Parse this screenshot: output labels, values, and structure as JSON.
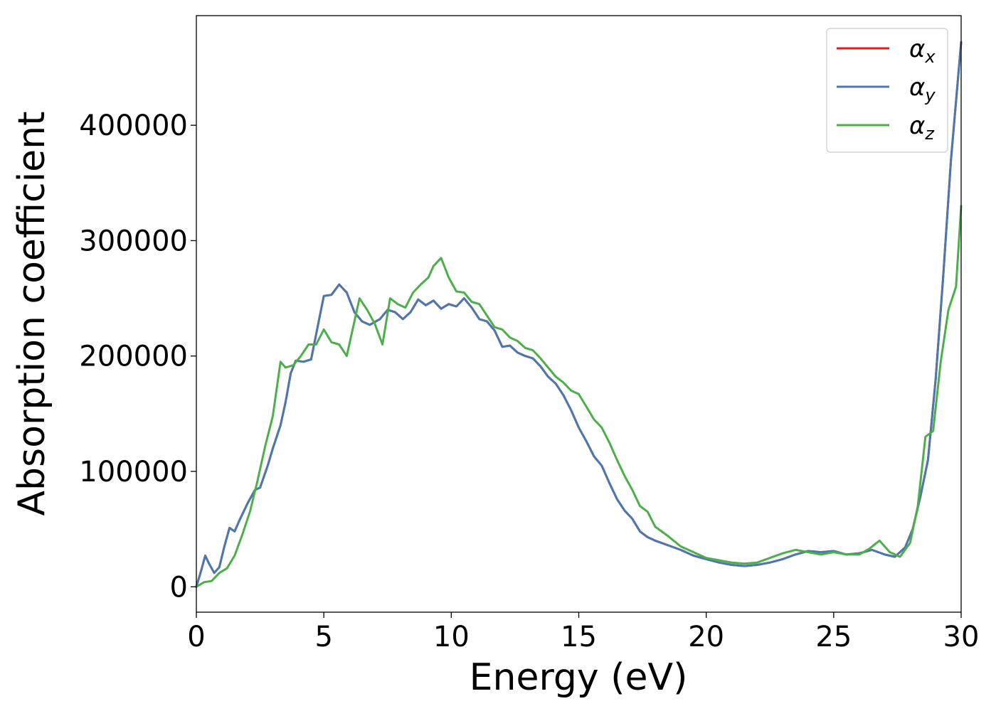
{
  "chart_data": {
    "type": "line",
    "title": "",
    "xlabel": "Energy (eV)",
    "ylabel": "Absorption coefficient",
    "xlim": [
      0,
      30
    ],
    "ylim": [
      -22000,
      495000
    ],
    "xticks": [
      0,
      5,
      10,
      15,
      20,
      25,
      30
    ],
    "xtick_labels": [
      "0",
      "5",
      "10",
      "15",
      "20",
      "25",
      "30"
    ],
    "yticks": [
      0,
      100000,
      200000,
      300000,
      400000
    ],
    "ytick_labels": [
      "0",
      "100000",
      "200000",
      "300000",
      "400000"
    ],
    "grid": false,
    "legend_position": "top-right",
    "series": [
      {
        "name": "α_x",
        "legend_symbol": "α",
        "legend_subscript": "x",
        "color": "#e41a1c",
        "x": [
          0,
          0.2,
          0.35,
          0.5,
          0.7,
          0.9,
          1.1,
          1.3,
          1.5,
          1.7,
          2.0,
          2.3,
          2.5,
          2.8,
          3.0,
          3.3,
          3.5,
          3.7,
          3.9,
          4.2,
          4.5,
          4.8,
          5.0,
          5.3,
          5.6,
          5.9,
          6.2,
          6.5,
          6.8,
          7.2,
          7.5,
          7.8,
          8.1,
          8.4,
          8.7,
          9.0,
          9.3,
          9.6,
          9.9,
          10.2,
          10.5,
          10.8,
          11.1,
          11.4,
          11.7,
          12.0,
          12.3,
          12.6,
          12.9,
          13.2,
          13.5,
          13.8,
          14.1,
          14.4,
          14.7,
          15.0,
          15.3,
          15.6,
          15.9,
          16.2,
          16.5,
          16.8,
          17.1,
          17.4,
          17.7,
          18.0,
          18.5,
          19.0,
          19.5,
          20.0,
          20.5,
          21.0,
          21.5,
          22.0,
          22.5,
          23.0,
          23.5,
          24.0,
          24.5,
          25.0,
          25.5,
          26.0,
          26.5,
          27.0,
          27.4,
          27.8,
          28.1,
          28.4,
          28.7,
          29.0,
          29.3,
          29.6,
          30.0
        ],
        "y": [
          0,
          15000,
          27000,
          20000,
          12000,
          17000,
          35000,
          51000,
          48000,
          58000,
          72000,
          84000,
          86000,
          105000,
          120000,
          140000,
          160000,
          185000,
          196000,
          195000,
          197000,
          230000,
          252000,
          253000,
          262000,
          255000,
          238000,
          230000,
          227000,
          232000,
          240000,
          238000,
          232000,
          238000,
          249000,
          244000,
          248000,
          241000,
          245000,
          243000,
          250000,
          242000,
          232000,
          230000,
          222000,
          208000,
          209000,
          203000,
          200000,
          198000,
          191000,
          182000,
          176000,
          166000,
          153000,
          138000,
          126000,
          113000,
          105000,
          90000,
          76000,
          66000,
          59000,
          48000,
          43000,
          40000,
          36000,
          32000,
          27000,
          24000,
          21000,
          19000,
          18000,
          19000,
          21000,
          24000,
          28000,
          31000,
          30000,
          31000,
          28000,
          29000,
          32000,
          28000,
          26000,
          34000,
          50000,
          78000,
          110000,
          180000,
          270000,
          370000,
          472000
        ]
      },
      {
        "name": "α_y",
        "legend_symbol": "α",
        "legend_subscript": "y",
        "color": "#4a79b0",
        "x": [
          0,
          0.2,
          0.35,
          0.5,
          0.7,
          0.9,
          1.1,
          1.3,
          1.5,
          1.7,
          2.0,
          2.3,
          2.5,
          2.8,
          3.0,
          3.3,
          3.5,
          3.7,
          3.9,
          4.2,
          4.5,
          4.8,
          5.0,
          5.3,
          5.6,
          5.9,
          6.2,
          6.5,
          6.8,
          7.2,
          7.5,
          7.8,
          8.1,
          8.4,
          8.7,
          9.0,
          9.3,
          9.6,
          9.9,
          10.2,
          10.5,
          10.8,
          11.1,
          11.4,
          11.7,
          12.0,
          12.3,
          12.6,
          12.9,
          13.2,
          13.5,
          13.8,
          14.1,
          14.4,
          14.7,
          15.0,
          15.3,
          15.6,
          15.9,
          16.2,
          16.5,
          16.8,
          17.1,
          17.4,
          17.7,
          18.0,
          18.5,
          19.0,
          19.5,
          20.0,
          20.5,
          21.0,
          21.5,
          22.0,
          22.5,
          23.0,
          23.5,
          24.0,
          24.5,
          25.0,
          25.5,
          26.0,
          26.5,
          27.0,
          27.4,
          27.8,
          28.1,
          28.4,
          28.7,
          29.0,
          29.3,
          29.6,
          30.0
        ],
        "y": [
          0,
          15000,
          27000,
          20000,
          12000,
          17000,
          35000,
          51000,
          48000,
          58000,
          72000,
          84000,
          86000,
          105000,
          120000,
          140000,
          160000,
          185000,
          196000,
          195000,
          197000,
          230000,
          252000,
          253000,
          262000,
          255000,
          238000,
          230000,
          227000,
          232000,
          240000,
          238000,
          232000,
          238000,
          249000,
          244000,
          248000,
          241000,
          245000,
          243000,
          250000,
          242000,
          232000,
          230000,
          222000,
          208000,
          209000,
          203000,
          200000,
          198000,
          191000,
          182000,
          176000,
          166000,
          153000,
          138000,
          126000,
          113000,
          105000,
          90000,
          76000,
          66000,
          59000,
          48000,
          43000,
          40000,
          36000,
          32000,
          27000,
          24000,
          21000,
          19000,
          18000,
          19000,
          21000,
          24000,
          28000,
          31000,
          30000,
          31000,
          28000,
          29000,
          32000,
          28000,
          26000,
          34000,
          50000,
          78000,
          110000,
          180000,
          270000,
          370000,
          472000
        ]
      },
      {
        "name": "α_z",
        "legend_symbol": "α",
        "legend_subscript": "z",
        "color": "#4daf4a",
        "x": [
          0,
          0.3,
          0.6,
          0.9,
          1.2,
          1.5,
          1.8,
          2.1,
          2.4,
          2.7,
          3.0,
          3.3,
          3.5,
          3.8,
          4.1,
          4.4,
          4.7,
          5.0,
          5.3,
          5.6,
          5.9,
          6.2,
          6.4,
          6.7,
          7.0,
          7.3,
          7.6,
          7.9,
          8.2,
          8.5,
          8.8,
          9.1,
          9.3,
          9.6,
          9.9,
          10.2,
          10.5,
          10.8,
          11.1,
          11.4,
          11.7,
          12.0,
          12.3,
          12.6,
          12.9,
          13.2,
          13.5,
          13.8,
          14.1,
          14.4,
          14.7,
          15.0,
          15.3,
          15.6,
          15.9,
          16.2,
          16.5,
          16.8,
          17.1,
          17.4,
          17.7,
          18.0,
          18.5,
          19.0,
          19.5,
          20.0,
          20.5,
          21.0,
          21.5,
          22.0,
          22.5,
          23.0,
          23.5,
          24.0,
          24.5,
          25.0,
          25.5,
          26.0,
          26.4,
          26.8,
          27.2,
          27.6,
          28.0,
          28.3,
          28.6,
          28.9,
          29.2,
          29.5,
          29.8,
          30.0
        ],
        "y": [
          0,
          4000,
          5000,
          12000,
          16000,
          27000,
          45000,
          65000,
          92000,
          122000,
          148000,
          195000,
          190000,
          192000,
          200000,
          210000,
          210000,
          223000,
          212000,
          210000,
          200000,
          230000,
          250000,
          240000,
          228000,
          210000,
          250000,
          245000,
          242000,
          255000,
          262000,
          268000,
          278000,
          285000,
          268000,
          256000,
          255000,
          247000,
          245000,
          235000,
          225000,
          223000,
          216000,
          213000,
          207000,
          205000,
          198000,
          190000,
          182000,
          177000,
          170000,
          167000,
          156000,
          145000,
          138000,
          125000,
          110000,
          96000,
          84000,
          70000,
          65000,
          52000,
          44000,
          35000,
          30000,
          25000,
          23000,
          21000,
          20000,
          21000,
          25000,
          29000,
          32000,
          30000,
          28000,
          30000,
          28000,
          28000,
          33000,
          40000,
          30000,
          26000,
          38000,
          70000,
          130000,
          135000,
          195000,
          240000,
          260000,
          330000
        ]
      }
    ]
  }
}
